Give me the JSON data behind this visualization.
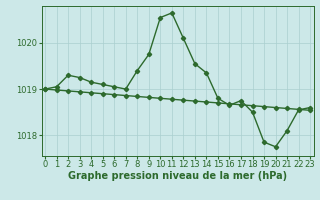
{
  "line1_x": [
    0,
    1,
    2,
    3,
    4,
    5,
    6,
    7,
    8,
    9,
    10,
    11,
    12,
    13,
    14,
    15,
    16,
    17,
    18,
    19,
    20,
    21,
    22,
    23
  ],
  "line1_y": [
    1019.0,
    1019.05,
    1019.3,
    1019.25,
    1019.15,
    1019.1,
    1019.05,
    1019.0,
    1019.4,
    1019.75,
    1020.55,
    1020.65,
    1020.1,
    1019.55,
    1019.35,
    1018.8,
    1018.65,
    1018.75,
    1018.5,
    1017.85,
    1017.75,
    1018.1,
    1018.55,
    1018.6
  ],
  "line2_x": [
    0,
    1,
    2,
    3,
    4,
    5,
    6,
    7,
    8,
    9,
    10,
    11,
    12,
    13,
    14,
    15,
    16,
    17,
    18,
    19,
    20,
    21,
    22,
    23
  ],
  "line2_y": [
    1019.0,
    1018.98,
    1018.96,
    1018.94,
    1018.92,
    1018.9,
    1018.88,
    1018.86,
    1018.84,
    1018.82,
    1018.8,
    1018.78,
    1018.76,
    1018.74,
    1018.72,
    1018.7,
    1018.68,
    1018.66,
    1018.64,
    1018.62,
    1018.6,
    1018.58,
    1018.56,
    1018.54
  ],
  "line_color": "#2d6a2d",
  "bg_color": "#cce8e8",
  "grid_color": "#aacfcf",
  "xlabel": "Graphe pression niveau de la mer (hPa)",
  "ylim": [
    1017.55,
    1020.8
  ],
  "xlim": [
    -0.3,
    23.3
  ],
  "yticks": [
    1018,
    1019,
    1020
  ],
  "xticks": [
    0,
    1,
    2,
    3,
    4,
    5,
    6,
    7,
    8,
    9,
    10,
    11,
    12,
    13,
    14,
    15,
    16,
    17,
    18,
    19,
    20,
    21,
    22,
    23
  ],
  "marker": "D",
  "markersize": 2.2,
  "linewidth": 1.0,
  "xlabel_fontsize": 7,
  "tick_fontsize": 6,
  "ylabel_fontsize": 6
}
